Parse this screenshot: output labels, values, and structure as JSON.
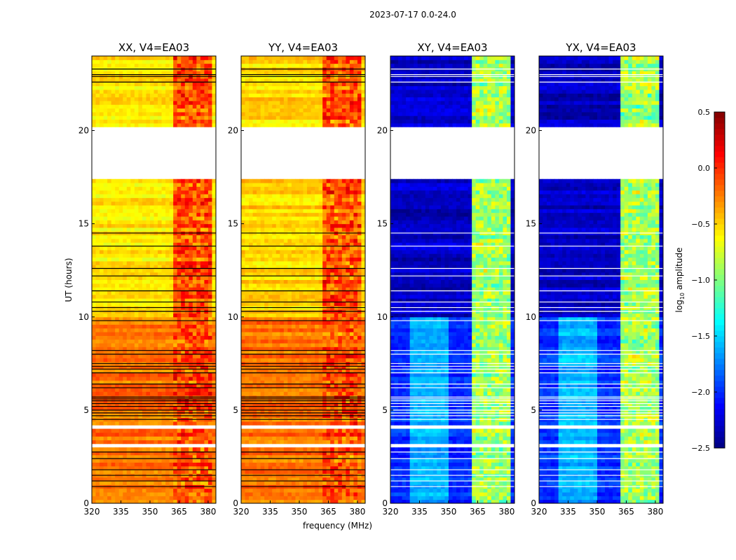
{
  "chart_data": {
    "type": "heatmap",
    "suptitle": "2023-07-17 0.0-24.0",
    "xlabel": "frequency (MHz)",
    "ylabel": "UT (hours)",
    "xlim": [
      320,
      384
    ],
    "ylim": [
      0,
      24
    ],
    "xticks": [
      "320",
      "335",
      "350",
      "365",
      "380"
    ],
    "yticks": [
      "0",
      "5",
      "10",
      "15",
      "20"
    ],
    "colorbar": {
      "label": "log10 amplitude",
      "label_main": "log",
      "label_sub": "10",
      "label_rest": " amplitude",
      "range": [
        -2.5,
        0.5
      ],
      "ticks": [
        "0.5",
        "0.0",
        "−0.5",
        "−1.0",
        "−1.5",
        "−2.0",
        "−2.5"
      ],
      "colormap": "jet"
    },
    "rfi_band_mhz": [
      363,
      381
    ],
    "blank_ranges_hours": [
      [
        17.5,
        20.1
      ],
      [
        4.0,
        4.25
      ],
      [
        3.05,
        3.3
      ]
    ],
    "flag_lines_hours": [
      0.9,
      1.2,
      1.5,
      1.8,
      2.4,
      2.75,
      4.5,
      4.7,
      4.85,
      5.0,
      5.2,
      5.35,
      5.5,
      5.6,
      5.7,
      6.2,
      6.4,
      7.0,
      7.2,
      7.35,
      7.5,
      8.0,
      8.2,
      9.8,
      10.3,
      10.5,
      10.8,
      11.4,
      12.2,
      12.6,
      13.8,
      14.5,
      23.0,
      23.3,
      22.9,
      22.6
    ],
    "panels": [
      {
        "title": "XX, V4=EA03",
        "base_low": -0.55,
        "base_high_0_10h": -0.2,
        "band_level": -0.1
      },
      {
        "title": "YY, V4=EA03",
        "base_low": -0.5,
        "base_high_0_10h": -0.2,
        "band_level": -0.1
      },
      {
        "title": "XY, V4=EA03",
        "base_low": -2.3,
        "base_high_0_10h": -2.0,
        "band_level": -0.9
      },
      {
        "title": "YX, V4=EA03",
        "base_low": -2.3,
        "base_high_0_10h": -2.0,
        "band_level": -0.9
      }
    ]
  }
}
